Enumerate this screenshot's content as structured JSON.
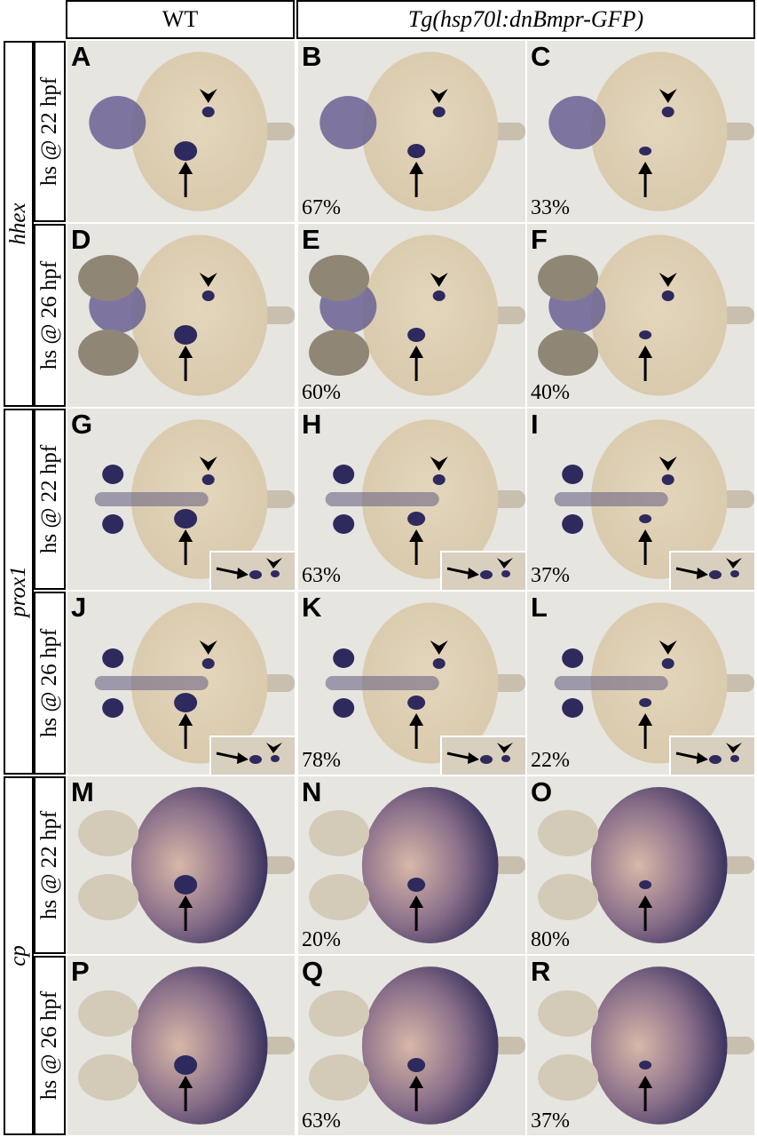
{
  "columns": {
    "wt": "WT",
    "transgenic": "Tg(hsp70l:dnBmpr-GFP)"
  },
  "genes": [
    "hhex",
    "prox1",
    "cp"
  ],
  "conditions": [
    "hs @ 22 hpf",
    "hs @ 26 hpf"
  ],
  "panels": [
    {
      "letter": "A",
      "percent": ""
    },
    {
      "letter": "B",
      "percent": "67%"
    },
    {
      "letter": "C",
      "percent": "33%"
    },
    {
      "letter": "D",
      "percent": ""
    },
    {
      "letter": "E",
      "percent": "60%"
    },
    {
      "letter": "F",
      "percent": "40%"
    },
    {
      "letter": "G",
      "percent": ""
    },
    {
      "letter": "H",
      "percent": "63%"
    },
    {
      "letter": "I",
      "percent": "37%"
    },
    {
      "letter": "J",
      "percent": ""
    },
    {
      "letter": "K",
      "percent": "78%"
    },
    {
      "letter": "L",
      "percent": "22%"
    },
    {
      "letter": "M",
      "percent": ""
    },
    {
      "letter": "N",
      "percent": "20%"
    },
    {
      "letter": "O",
      "percent": "80%"
    },
    {
      "letter": "P",
      "percent": ""
    },
    {
      "letter": "Q",
      "percent": "63%"
    },
    {
      "letter": "R",
      "percent": "37%"
    }
  ],
  "colors": {
    "stain": "#2e2a5e",
    "yolk": "#d8c9ac",
    "background": "#e6e5e0"
  }
}
